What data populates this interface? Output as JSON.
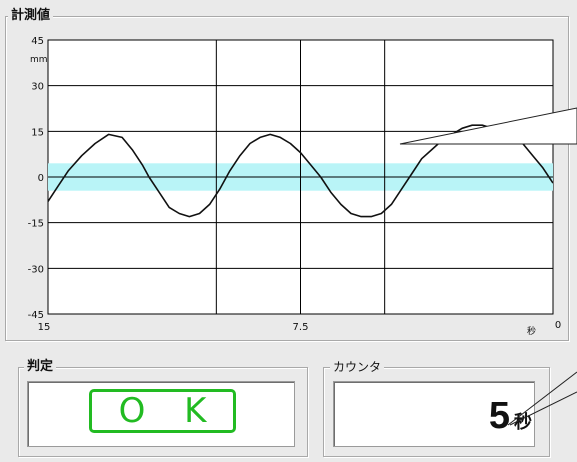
{
  "measurement": {
    "title": "計測値",
    "unit_label": "mm",
    "x_unit_label": "秒"
  },
  "judgement": {
    "title": "判定",
    "result": "O K",
    "result_color": "#22bb22"
  },
  "counter": {
    "title": "カウンタ",
    "value": "5",
    "unit": "秒"
  },
  "colors": {
    "plot_bg": "#ffffff",
    "band": "#b9f4f7",
    "grid": "#000000",
    "trace": "#111111"
  },
  "chart_data": {
    "type": "line",
    "title": "計測値",
    "xlabel": "秒",
    "ylabel": "mm",
    "xlim": [
      15,
      0
    ],
    "ylim": [
      -45,
      45
    ],
    "x_ticks": [
      15,
      10,
      7.5,
      5,
      0
    ],
    "x_tick_labels": [
      "15",
      "",
      "7.5",
      "",
      "0"
    ],
    "y_ticks": [
      45,
      30,
      15,
      0,
      -15,
      -30,
      -45
    ],
    "y_tick_labels": [
      "45",
      "30",
      "15",
      "0",
      "-15",
      "-30",
      "-45"
    ],
    "tolerance_band": [
      -4.5,
      4.5
    ],
    "grid": true,
    "series": [
      {
        "x": [
          15,
          14.7,
          14.4,
          14.0,
          13.6,
          13.2,
          12.8,
          12.5,
          12.2,
          12.0,
          11.7,
          11.4,
          11.1,
          10.8,
          10.5,
          10.2,
          9.9,
          9.6,
          9.3,
          9.0,
          8.7,
          8.4,
          8.1,
          7.8,
          7.5,
          7.2,
          6.9,
          6.6,
          6.3,
          6.0,
          5.7,
          5.4,
          5.1,
          4.8,
          4.5,
          4.2,
          3.9,
          3.6,
          3.3,
          3.0,
          2.7,
          2.4,
          2.1,
          1.8,
          1.5,
          1.2,
          0.9,
          0.6,
          0.3,
          0.0
        ],
        "y": [
          -8,
          -3,
          2,
          7,
          11,
          14,
          13,
          9,
          4,
          0,
          -5,
          -10,
          -12,
          -13,
          -12,
          -9,
          -4,
          2,
          7,
          11,
          13,
          14,
          13,
          11,
          8,
          4,
          0,
          -5,
          -9,
          -12,
          -13,
          -13,
          -12,
          -9,
          -4,
          1,
          6,
          9,
          12,
          14,
          16,
          17,
          17,
          16,
          14,
          13,
          11,
          7,
          3,
          -2
        ]
      }
    ]
  }
}
